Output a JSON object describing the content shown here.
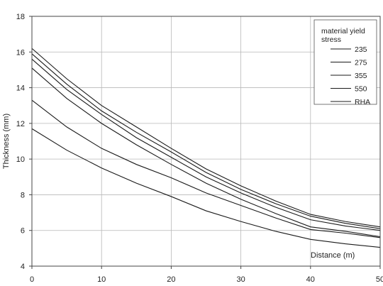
{
  "chart_data": {
    "type": "line",
    "title": "",
    "xlabel": "Distance (m)",
    "ylabel": "Thickness (mm)",
    "xlim": [
      0,
      50
    ],
    "ylim": [
      4,
      18
    ],
    "x_ticks": [
      "0",
      "10",
      "20",
      "30",
      "40",
      "50"
    ],
    "y_ticks": [
      "4",
      "6",
      "8",
      "10",
      "12",
      "14",
      "16",
      "18"
    ],
    "grid": true,
    "legend_title": "material yield stress",
    "legend_placement": "top-right",
    "x": [
      0,
      5,
      10,
      15,
      20,
      25,
      30,
      35,
      40,
      45,
      50
    ],
    "series": [
      {
        "name": "235",
        "values": [
          16.2,
          14.5,
          13.0,
          11.8,
          10.6,
          9.45,
          8.5,
          7.65,
          6.9,
          6.5,
          6.2
        ]
      },
      {
        "name": "275",
        "values": [
          15.9,
          14.2,
          12.7,
          11.5,
          10.4,
          9.25,
          8.3,
          7.5,
          6.8,
          6.4,
          6.1
        ]
      },
      {
        "name": "355",
        "values": [
          15.6,
          13.9,
          12.5,
          11.2,
          10.1,
          9.0,
          8.1,
          7.3,
          6.6,
          6.25,
          6.0
        ]
      },
      {
        "name": "550",
        "values": [
          15.1,
          13.4,
          12.0,
          10.8,
          9.7,
          8.65,
          7.75,
          6.95,
          6.2,
          5.95,
          5.65
        ]
      },
      {
        "name": "RHA",
        "values": [
          13.3,
          11.8,
          10.6,
          9.7,
          8.95,
          8.1,
          7.4,
          6.7,
          6.05,
          5.85,
          5.6
        ]
      },
      {
        "name": "",
        "values": [
          11.7,
          10.5,
          9.5,
          8.65,
          7.9,
          7.1,
          6.5,
          5.95,
          5.5,
          5.25,
          5.05
        ]
      }
    ]
  }
}
